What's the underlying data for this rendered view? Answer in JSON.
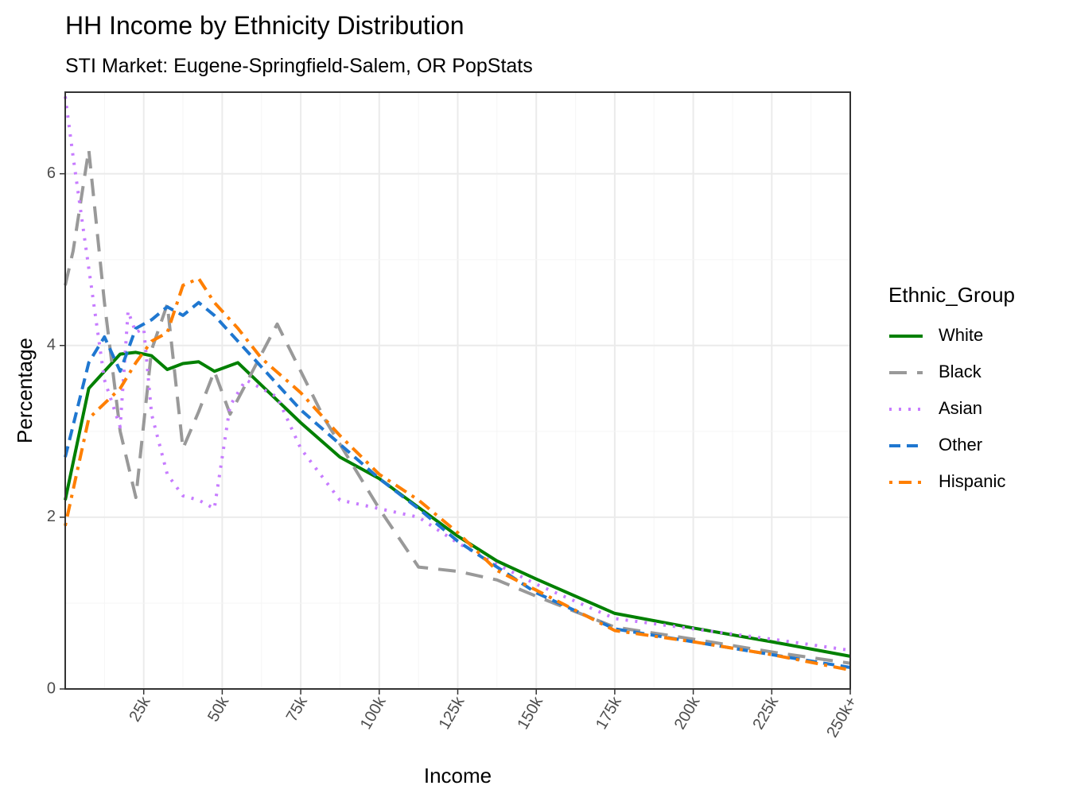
{
  "chart_data": {
    "type": "line",
    "title": "HH Income by Ethnicity Distribution",
    "subtitle": "STI Market: Eugene-Springfield-Salem, OR PopStats",
    "xlabel": "Income",
    "ylabel": "Percentage",
    "xlim": [
      0,
      250
    ],
    "ylim": [
      0,
      6.95
    ],
    "x_ticks": [
      {
        "value": 25,
        "label": "25k"
      },
      {
        "value": 50,
        "label": "50k"
      },
      {
        "value": 75,
        "label": "75k"
      },
      {
        "value": 100,
        "label": "100k"
      },
      {
        "value": 125,
        "label": "125k"
      },
      {
        "value": 150,
        "label": "150k"
      },
      {
        "value": 175,
        "label": "175k"
      },
      {
        "value": 200,
        "label": "200k"
      },
      {
        "value": 225,
        "label": "225k"
      },
      {
        "value": 250,
        "label": "250k+"
      }
    ],
    "y_ticks": [
      {
        "value": 0,
        "label": "0"
      },
      {
        "value": 2,
        "label": "2"
      },
      {
        "value": 4,
        "label": "4"
      },
      {
        "value": 6,
        "label": "6"
      }
    ],
    "grid": true,
    "legend_title": "Ethnic_Group",
    "legend_position": "right",
    "series": [
      {
        "name": "White",
        "color": "#008000",
        "dash": "solid",
        "points": [
          [
            0,
            2.2
          ],
          [
            7.5,
            3.5
          ],
          [
            17.5,
            3.9
          ],
          [
            22.5,
            3.92
          ],
          [
            27.5,
            3.88
          ],
          [
            32.5,
            3.72
          ],
          [
            37.5,
            3.79
          ],
          [
            42.5,
            3.81
          ],
          [
            47.5,
            3.7
          ],
          [
            55,
            3.8
          ],
          [
            75,
            3.1
          ],
          [
            87.5,
            2.7
          ],
          [
            100,
            2.45
          ],
          [
            125,
            1.78
          ],
          [
            137.5,
            1.49
          ],
          [
            150,
            1.28
          ],
          [
            175,
            0.88
          ],
          [
            200,
            0.71
          ],
          [
            225,
            0.55
          ],
          [
            250,
            0.38
          ]
        ]
      },
      {
        "name": "Black",
        "color": "#999999",
        "dash": "longdash",
        "points": [
          [
            0,
            4.7
          ],
          [
            2.5,
            5.1
          ],
          [
            7.5,
            6.28
          ],
          [
            12.5,
            4.5
          ],
          [
            17.5,
            3.0
          ],
          [
            22.5,
            2.23
          ],
          [
            27.5,
            3.95
          ],
          [
            32.5,
            4.48
          ],
          [
            37.5,
            2.8
          ],
          [
            42.5,
            3.23
          ],
          [
            47.5,
            3.7
          ],
          [
            52.5,
            3.2
          ],
          [
            57.5,
            3.55
          ],
          [
            67.5,
            4.25
          ],
          [
            75,
            3.7
          ],
          [
            82.5,
            3.15
          ],
          [
            100,
            2.1
          ],
          [
            112.5,
            1.42
          ],
          [
            125,
            1.37
          ],
          [
            137.5,
            1.27
          ],
          [
            150,
            1.08
          ],
          [
            175,
            0.72
          ],
          [
            200,
            0.58
          ],
          [
            225,
            0.43
          ],
          [
            250,
            0.3
          ]
        ]
      },
      {
        "name": "Asian",
        "color": "#C77CFF",
        "dash": "dotted",
        "points": [
          [
            0,
            6.9
          ],
          [
            2.5,
            6.2
          ],
          [
            7.5,
            4.9
          ],
          [
            12.5,
            3.6
          ],
          [
            17.5,
            3.05
          ],
          [
            20,
            4.4
          ],
          [
            22.5,
            4.15
          ],
          [
            25,
            4.2
          ],
          [
            27.5,
            3.2
          ],
          [
            32.5,
            2.5
          ],
          [
            37.5,
            2.25
          ],
          [
            42.5,
            2.2
          ],
          [
            47.5,
            2.1
          ],
          [
            52.5,
            3.3
          ],
          [
            57.5,
            3.6
          ],
          [
            67.5,
            3.4
          ],
          [
            75,
            2.8
          ],
          [
            87.5,
            2.2
          ],
          [
            100,
            2.1
          ],
          [
            112.5,
            2.0
          ],
          [
            125,
            1.7
          ],
          [
            137.5,
            1.45
          ],
          [
            150,
            1.22
          ],
          [
            175,
            0.82
          ],
          [
            200,
            0.7
          ],
          [
            225,
            0.58
          ],
          [
            250,
            0.45
          ]
        ]
      },
      {
        "name": "Other",
        "color": "#1F77D0",
        "dash": "dashed",
        "points": [
          [
            0,
            2.7
          ],
          [
            7.5,
            3.8
          ],
          [
            12.5,
            4.1
          ],
          [
            17.5,
            3.7
          ],
          [
            22.5,
            4.2
          ],
          [
            27.5,
            4.3
          ],
          [
            32.5,
            4.45
          ],
          [
            37.5,
            4.35
          ],
          [
            42.5,
            4.5
          ],
          [
            47.5,
            4.35
          ],
          [
            55,
            4.05
          ],
          [
            75,
            3.25
          ],
          [
            87.5,
            2.85
          ],
          [
            100,
            2.45
          ],
          [
            112.5,
            2.1
          ],
          [
            125,
            1.72
          ],
          [
            137.5,
            1.42
          ],
          [
            150,
            1.12
          ],
          [
            175,
            0.7
          ],
          [
            200,
            0.55
          ],
          [
            225,
            0.4
          ],
          [
            250,
            0.25
          ]
        ]
      },
      {
        "name": "Hispanic",
        "color": "#FF7F00",
        "dash": "dotdash",
        "points": [
          [
            0,
            1.9
          ],
          [
            7.5,
            3.15
          ],
          [
            17.5,
            3.5
          ],
          [
            22.5,
            3.8
          ],
          [
            27.5,
            4.05
          ],
          [
            32.5,
            4.15
          ],
          [
            37.5,
            4.7
          ],
          [
            42.5,
            4.78
          ],
          [
            47.5,
            4.5
          ],
          [
            55,
            4.2
          ],
          [
            62.5,
            3.85
          ],
          [
            75,
            3.45
          ],
          [
            87.5,
            2.95
          ],
          [
            100,
            2.5
          ],
          [
            112.5,
            2.2
          ],
          [
            125,
            1.82
          ],
          [
            137.5,
            1.38
          ],
          [
            150,
            1.15
          ],
          [
            175,
            0.68
          ],
          [
            200,
            0.55
          ],
          [
            225,
            0.4
          ],
          [
            250,
            0.22
          ]
        ]
      }
    ]
  }
}
